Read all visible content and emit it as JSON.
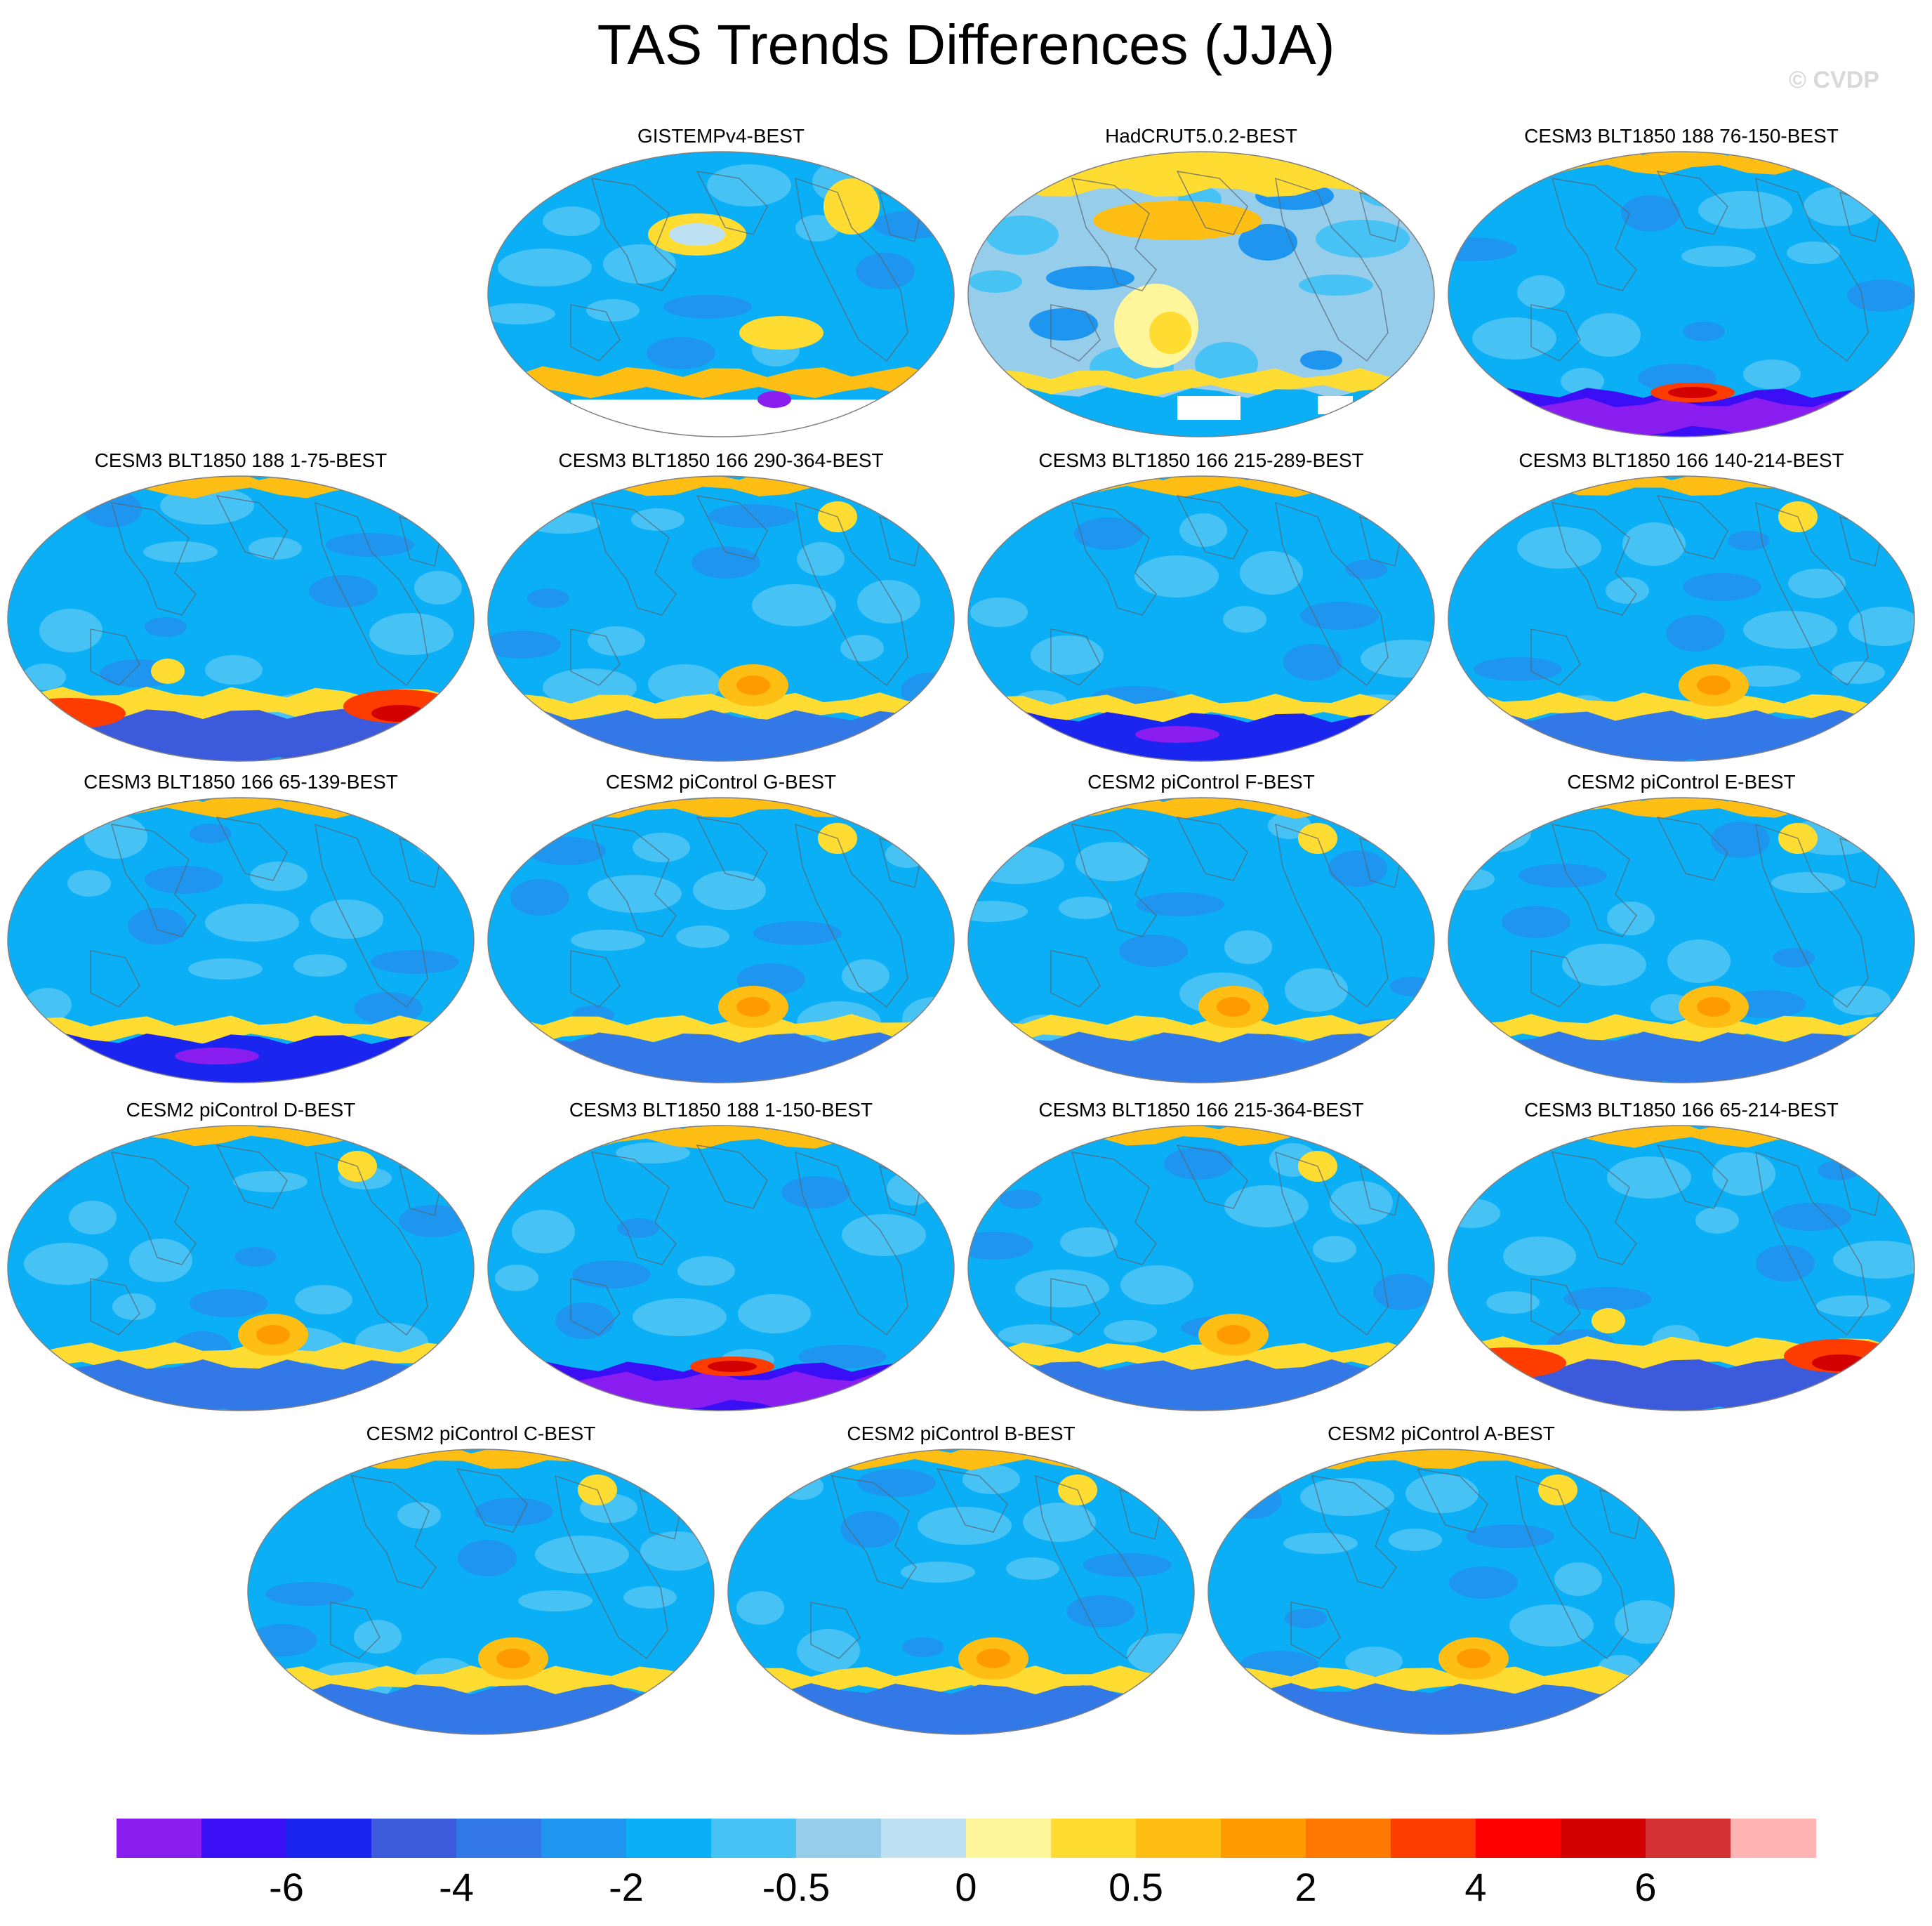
{
  "title": "TAS Trends Differences (JJA)",
  "watermark": "© CVDP",
  "panels": [
    {
      "title": "GISTEMPv4-BEST",
      "style": "obs1"
    },
    {
      "title": "HadCRUT5.0.2-BEST",
      "style": "obs2"
    },
    {
      "title": "CESM3 BLT1850 188 76-150-BEST",
      "style": "purple"
    },
    {
      "title": "CESM3 BLT1850 188 1-75-BEST",
      "style": "red"
    },
    {
      "title": "CESM3 BLT1850 166 290-364-BEST",
      "style": "band"
    },
    {
      "title": "CESM3 BLT1850 166 215-289-BEST",
      "style": "dark"
    },
    {
      "title": "CESM3 BLT1850 166 140-214-BEST",
      "style": "band"
    },
    {
      "title": "CESM3 BLT1850 166 65-139-BEST",
      "style": "dark"
    },
    {
      "title": "CESM2 piControl G-BEST",
      "style": "band"
    },
    {
      "title": "CESM2 piControl F-BEST",
      "style": "band"
    },
    {
      "title": "CESM2 piControl E-BEST",
      "style": "band"
    },
    {
      "title": "CESM2 piControl D-BEST",
      "style": "band"
    },
    {
      "title": "CESM3 BLT1850 188 1-150-BEST",
      "style": "purple"
    },
    {
      "title": "CESM3 BLT1850 166 215-364-BEST",
      "style": "band"
    },
    {
      "title": "CESM3 BLT1850 166 65-214-BEST",
      "style": "red"
    },
    {
      "title": "CESM2 piControl C-BEST",
      "style": "band"
    },
    {
      "title": "CESM2 piControl B-BEST",
      "style": "band"
    },
    {
      "title": "CESM2 piControl A-BEST",
      "style": "band"
    }
  ],
  "colorbar": {
    "colors": [
      "#8a1ef0",
      "#3a0ff5",
      "#1a25f0",
      "#3c5bdc",
      "#3278e6",
      "#1e96f0",
      "#0aaff5",
      "#46c2f5",
      "#96cdeb",
      "#bde0f3",
      "#fff59a",
      "#ffdc32",
      "#ffbe14",
      "#ff9b00",
      "#ff7800",
      "#ff3c00",
      "#ff0000",
      "#d20000",
      "#d23232",
      "#ffb4b4"
    ],
    "labels": [
      {
        "text": "-6",
        "boundary": 2
      },
      {
        "text": "-4",
        "boundary": 4
      },
      {
        "text": "-2",
        "boundary": 6
      },
      {
        "text": "-0.5",
        "boundary": 8
      },
      {
        "text": "0",
        "boundary": 10
      },
      {
        "text": "0.5",
        "boundary": 12
      },
      {
        "text": "2",
        "boundary": 14
      },
      {
        "text": "4",
        "boundary": 16
      },
      {
        "text": "6",
        "boundary": 18
      }
    ]
  }
}
